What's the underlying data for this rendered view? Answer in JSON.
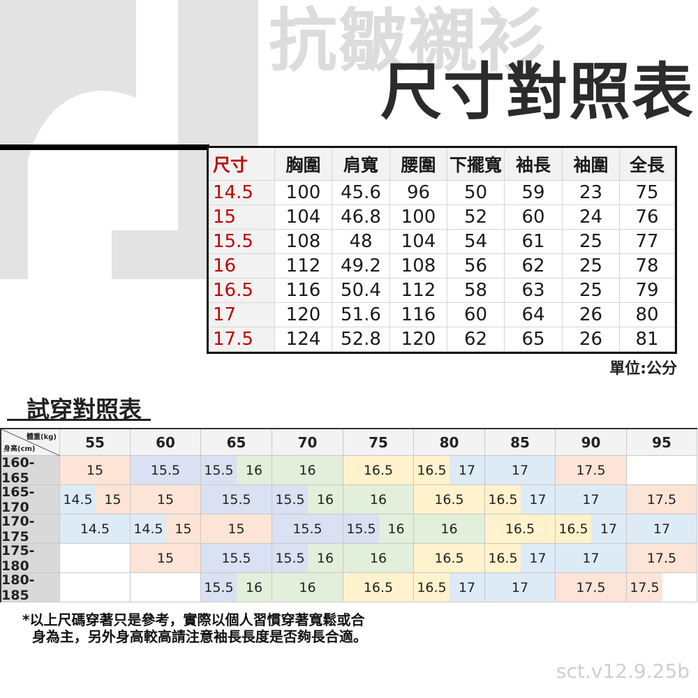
{
  "header": {
    "background_title": "抗皺襯衫",
    "title": "尺寸對照表"
  },
  "size_table": {
    "columns": [
      "尺寸",
      "胸圍",
      "肩寬",
      "腰圍",
      "下擺寬",
      "袖長",
      "袖圍",
      "全長"
    ],
    "rows": [
      [
        "14.5",
        "100",
        "45.6",
        "96",
        "50",
        "59",
        "23",
        "75"
      ],
      [
        "15",
        "104",
        "46.8",
        "100",
        "52",
        "60",
        "24",
        "76"
      ],
      [
        "15.5",
        "108",
        "48",
        "104",
        "54",
        "61",
        "25",
        "77"
      ],
      [
        "16",
        "112",
        "49.2",
        "108",
        "56",
        "62",
        "25",
        "78"
      ],
      [
        "16.5",
        "116",
        "50.4",
        "112",
        "58",
        "63",
        "25",
        "79"
      ],
      [
        "17",
        "120",
        "51.6",
        "116",
        "60",
        "64",
        "26",
        "80"
      ],
      [
        "17.5",
        "124",
        "52.8",
        "120",
        "62",
        "65",
        "26",
        "81"
      ]
    ],
    "unit": "單位:公分",
    "size_color": "#c00000"
  },
  "fit_table": {
    "title": "試穿對照表",
    "corner_weight": "體重(kg)",
    "corner_height": "身高(cm)",
    "weights": [
      "55",
      "60",
      "65",
      "70",
      "75",
      "80",
      "85",
      "90",
      "95"
    ],
    "rows": [
      {
        "height": "160-165",
        "cells": [
          [
            "15"
          ],
          [
            "15.5"
          ],
          [
            "15.5",
            "16"
          ],
          [
            "16"
          ],
          [
            "16.5"
          ],
          [
            "16.5",
            "17"
          ],
          [
            "17"
          ],
          [
            "17.5"
          ],
          []
        ]
      },
      {
        "height": "165-170",
        "cells": [
          [
            "14.5",
            "15"
          ],
          [
            "15"
          ],
          [
            "15.5"
          ],
          [
            "15.5",
            "16"
          ],
          [
            "16"
          ],
          [
            "16.5"
          ],
          [
            "16.5",
            "17"
          ],
          [
            "17"
          ],
          [
            "17.5"
          ]
        ]
      },
      {
        "height": "170-175",
        "cells": [
          [
            "14.5"
          ],
          [
            "14.5",
            "15"
          ],
          [
            "15"
          ],
          [
            "15.5"
          ],
          [
            "15.5",
            "16"
          ],
          [
            "16"
          ],
          [
            "16.5"
          ],
          [
            "16.5",
            "17"
          ],
          [
            "17"
          ]
        ]
      },
      {
        "height": "175-180",
        "cells": [
          [],
          [
            "15"
          ],
          [
            "15.5"
          ],
          [
            "15.5",
            "16"
          ],
          [
            "16"
          ],
          [
            "16.5"
          ],
          [
            "16.5",
            "17"
          ],
          [
            "17"
          ],
          [
            "17.5"
          ]
        ]
      },
      {
        "height": "180-185",
        "cells": [
          [],
          [],
          [
            "15.5",
            "16"
          ],
          [
            "16"
          ],
          [
            "16.5"
          ],
          [
            "16.5",
            "17"
          ],
          [
            "17"
          ],
          [
            "17.5"
          ],
          [
            "17.5",
            ""
          ]
        ]
      }
    ],
    "size_colors": {
      "14.5": "#ddebf7",
      "15": "#fce4d6",
      "15.5": "#d9e1f2",
      "16": "#e2efda",
      "16.5": "#fff2cc",
      "17": "#ddebf7",
      "17.5": "#fce4d6"
    }
  },
  "footnote": "*以上尺碼穿著只是參考，實際以個人習慣穿著寬鬆或合\n  身為主，另外身高較高請注意袖長長度是否夠長合適。",
  "version": "sct.v12.9.25b"
}
